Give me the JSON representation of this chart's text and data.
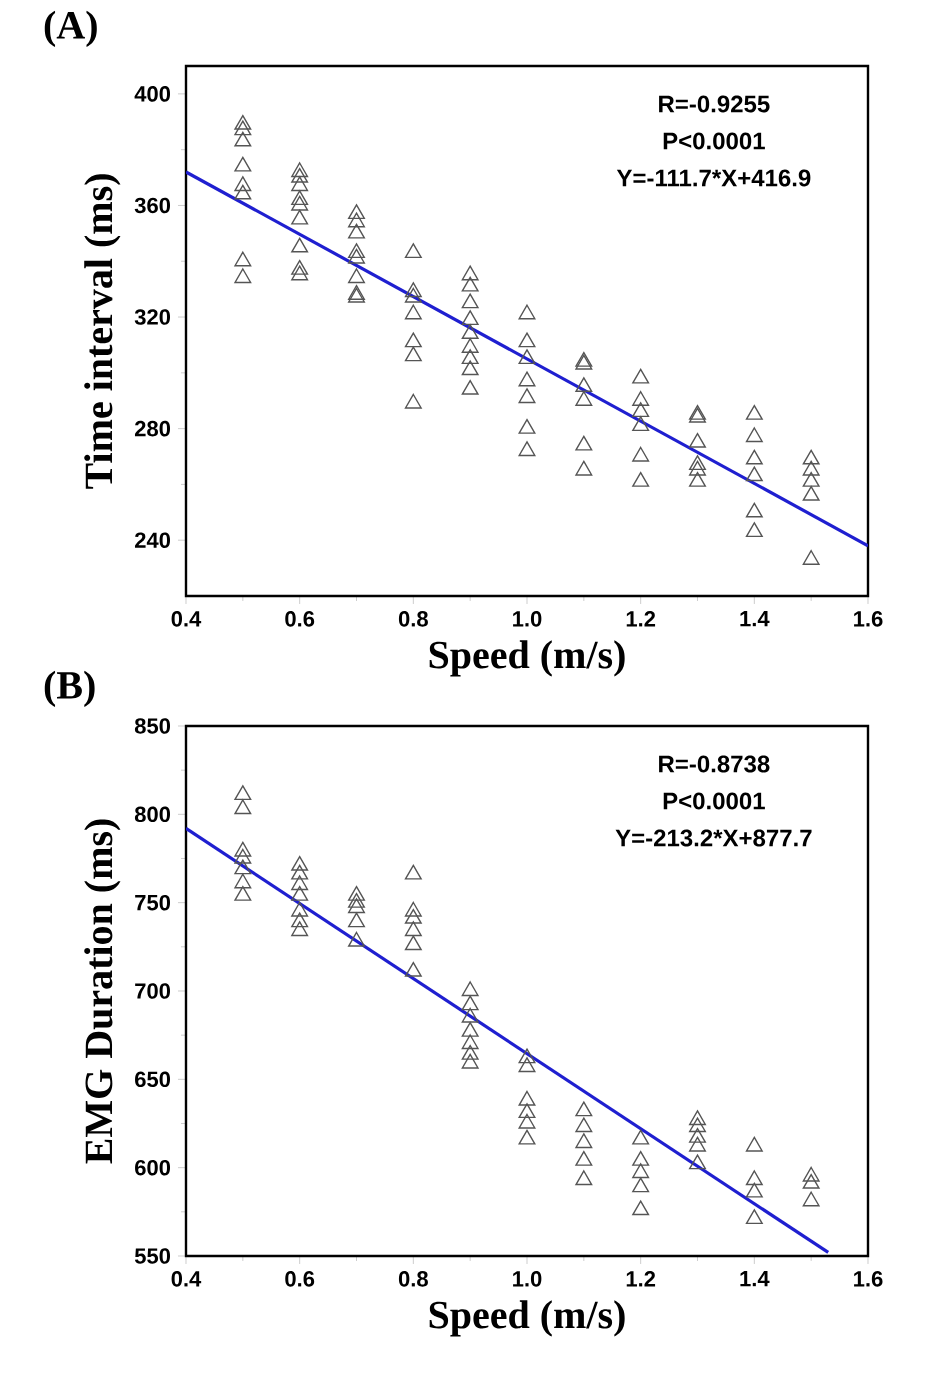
{
  "chart_data": [
    {
      "type": "scatter",
      "title": "(A)",
      "xlabel": "Speed (m/s)",
      "ylabel": "Time interval (ms)",
      "annotations": [
        "R=-0.9255",
        "P<0.0001",
        "Y=-111.7*X+416.9"
      ],
      "xlim": [
        0.4,
        1.6
      ],
      "xticks": [
        0.4,
        0.6,
        0.8,
        {
          "value": 1.0,
          "label": "1.0"
        },
        1.2,
        1.4,
        1.6
      ],
      "ylim": [
        220,
        410
      ],
      "yticks": [
        240,
        280,
        320,
        360,
        400
      ],
      "series": [
        {
          "color": "#555555",
          "marker": "triangle",
          "x": [
            0.5,
            0.5,
            0.5,
            0.5,
            0.5,
            0.5,
            0.5,
            0.5,
            0.6,
            0.6,
            0.6,
            0.6,
            0.6,
            0.6,
            0.6,
            0.6,
            0.6,
            0.7,
            0.7,
            0.7,
            0.7,
            0.7,
            0.7,
            0.7,
            0.7,
            0.8,
            0.8,
            0.8,
            0.8,
            0.8,
            0.8,
            0.8,
            0.9,
            0.9,
            0.9,
            0.9,
            0.9,
            0.9,
            0.9,
            0.9,
            0.9,
            1.0,
            1.0,
            1.0,
            1.0,
            1.0,
            1.0,
            1.0,
            1.1,
            1.1,
            1.1,
            1.1,
            1.1,
            1.1,
            1.2,
            1.2,
            1.2,
            1.2,
            1.2,
            1.2,
            1.3,
            1.3,
            1.3,
            1.3,
            1.3,
            1.3,
            1.4,
            1.4,
            1.4,
            1.4,
            1.4,
            1.4,
            1.5,
            1.5,
            1.5,
            1.5,
            1.5
          ],
          "values": [
            389,
            387,
            383,
            374,
            367,
            364,
            340,
            334,
            372,
            370,
            367,
            362,
            360,
            355,
            345,
            337,
            335,
            357,
            354,
            350,
            343,
            341,
            334,
            328,
            327,
            343,
            329,
            327,
            321,
            311,
            306,
            289,
            335,
            331,
            325,
            319,
            314,
            309,
            305,
            301,
            294,
            321,
            311,
            305,
            297,
            291,
            280,
            272,
            304,
            303,
            295,
            290,
            274,
            265,
            298,
            290,
            286,
            281,
            270,
            261,
            285,
            284,
            275,
            267,
            265,
            261,
            285,
            277,
            269,
            263,
            250,
            243,
            269,
            265,
            261,
            256,
            233
          ]
        },
        {
          "type": "line",
          "color": "#1f1fd0",
          "marker": "none",
          "x": [
            0.4,
            1.6
          ],
          "values": [
            372,
            238
          ]
        }
      ]
    },
    {
      "type": "scatter",
      "title": "(B)",
      "xlabel": "Speed (m/s)",
      "ylabel": "EMG Duration (ms)",
      "annotations": [
        "R=-0.8738",
        "P<0.0001",
        "Y=-213.2*X+877.7"
      ],
      "xlim": [
        0.4,
        1.6
      ],
      "xticks": [
        0.4,
        0.6,
        0.8,
        {
          "value": 1.0,
          "label": "1.0"
        },
        1.2,
        1.4,
        1.6
      ],
      "ylim": [
        550,
        850
      ],
      "yticks": [
        550,
        600,
        650,
        700,
        750,
        800,
        850
      ],
      "series": [
        {
          "color": "#555555",
          "marker": "triangle",
          "x": [
            0.5,
            0.5,
            0.5,
            0.5,
            0.5,
            0.5,
            0.5,
            0.6,
            0.6,
            0.6,
            0.6,
            0.6,
            0.6,
            0.6,
            0.7,
            0.7,
            0.7,
            0.7,
            0.7,
            0.8,
            0.8,
            0.8,
            0.8,
            0.8,
            0.8,
            0.9,
            0.9,
            0.9,
            0.9,
            0.9,
            0.9,
            0.9,
            1.0,
            1.0,
            1.0,
            1.0,
            1.0,
            1.0,
            1.1,
            1.1,
            1.1,
            1.1,
            1.1,
            1.2,
            1.2,
            1.2,
            1.2,
            1.2,
            1.3,
            1.3,
            1.3,
            1.3,
            1.3,
            1.4,
            1.4,
            1.4,
            1.4,
            1.5,
            1.5,
            1.5
          ],
          "values": [
            811,
            803,
            779,
            775,
            769,
            761,
            754,
            771,
            766,
            760,
            754,
            745,
            739,
            734,
            754,
            750,
            747,
            739,
            728,
            766,
            745,
            741,
            734,
            726,
            711,
            700,
            692,
            685,
            677,
            670,
            664,
            659,
            662,
            657,
            638,
            631,
            625,
            616,
            632,
            623,
            614,
            604,
            593,
            616,
            604,
            597,
            589,
            576,
            627,
            623,
            617,
            612,
            602,
            612,
            593,
            586,
            571,
            595,
            591,
            581
          ]
        },
        {
          "type": "line",
          "color": "#1f1fd0",
          "marker": "none",
          "x": [
            0.4,
            1.53
          ],
          "values": [
            792,
            552
          ]
        }
      ]
    }
  ]
}
